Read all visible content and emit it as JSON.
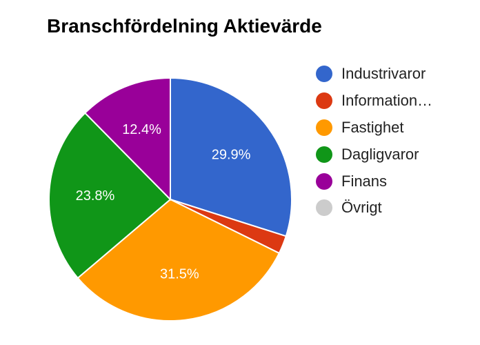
{
  "chart_data": {
    "type": "pie",
    "title": "Branschfördelning Aktievärde",
    "legend_position": "right",
    "slices": [
      {
        "name": "Industrivaror",
        "legend_label": "Industrivaror",
        "value": 29.9,
        "value_label": "29.9%",
        "color": "#3366cc"
      },
      {
        "name": "Information…",
        "legend_label": "Information…",
        "value": 2.4,
        "value_label": "",
        "color": "#dc3912"
      },
      {
        "name": "Fastighet",
        "legend_label": "Fastighet",
        "value": 31.5,
        "value_label": "31.5%",
        "color": "#ff9900"
      },
      {
        "name": "Dagligvaror",
        "legend_label": "Dagligvaror",
        "value": 23.8,
        "value_label": "23.8%",
        "color": "#109618"
      },
      {
        "name": "Finans",
        "legend_label": "Finans",
        "value": 12.4,
        "value_label": "12.4%",
        "color": "#990099"
      },
      {
        "name": "Övrigt",
        "legend_label": "Övrigt",
        "value": 0,
        "value_label": "",
        "color": "#cccccc"
      }
    ]
  }
}
